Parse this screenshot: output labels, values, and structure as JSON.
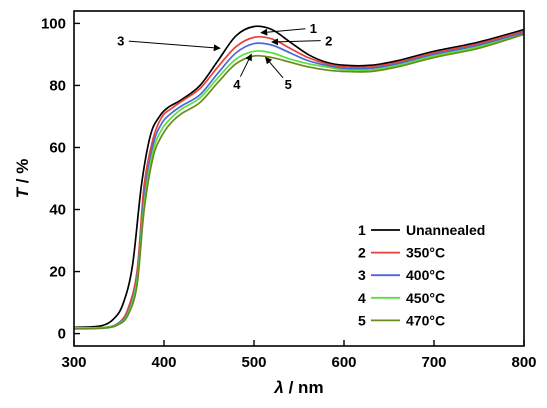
{
  "chart_data": {
    "type": "line",
    "xlabel_symbol": "λ",
    "xlabel_unit": " / nm",
    "ylabel_symbol": "T",
    "ylabel_unit": " / %",
    "xlim": [
      300,
      800
    ],
    "ylim": [
      -4,
      104
    ],
    "xticks": [
      300,
      400,
      500,
      600,
      700,
      800
    ],
    "yticks": [
      0,
      20,
      40,
      60,
      80,
      100
    ],
    "grid": false,
    "legend_position": "bottom-right",
    "series": [
      {
        "index": "1",
        "name": "Unannealed",
        "color": "#000000",
        "x": [
          300,
          330,
          345,
          355,
          365,
          375,
          385,
          395,
          405,
          420,
          440,
          460,
          480,
          500,
          520,
          540,
          560,
          580,
          600,
          630,
          660,
          700,
          750,
          800
        ],
        "y": [
          2,
          2.5,
          5,
          10,
          22,
          48,
          64,
          70,
          73,
          75.5,
          80,
          88,
          96,
          99,
          98,
          94,
          90,
          87.5,
          86.5,
          86.5,
          88,
          91,
          94,
          98
        ]
      },
      {
        "index": "2",
        "name": "350°C",
        "color": "#e8403a",
        "x": [
          300,
          335,
          350,
          360,
          370,
          378,
          388,
          398,
          408,
          420,
          440,
          460,
          480,
          500,
          520,
          540,
          560,
          580,
          600,
          630,
          660,
          700,
          750,
          800
        ],
        "y": [
          1.8,
          2,
          3.5,
          8,
          20,
          48,
          63,
          70,
          72.5,
          75,
          79,
          86,
          92.5,
          95.5,
          95,
          92,
          89,
          87,
          86,
          86,
          87.5,
          90.5,
          93.5,
          97.5
        ]
      },
      {
        "index": "3",
        "name": "400°C",
        "color": "#4a68d8",
        "x": [
          300,
          335,
          350,
          360,
          370,
          378,
          388,
          398,
          408,
          420,
          440,
          460,
          480,
          500,
          520,
          540,
          560,
          580,
          600,
          630,
          660,
          700,
          750,
          800
        ],
        "y": [
          1.8,
          2,
          3.5,
          7,
          18,
          44,
          61,
          68,
          71,
          73.5,
          77,
          84,
          90.5,
          93.5,
          93,
          90.5,
          88,
          86.5,
          85.5,
          85.5,
          87,
          90,
          93,
          97
        ]
      },
      {
        "index": "4",
        "name": "450°C",
        "color": "#58e03c",
        "x": [
          300,
          335,
          350,
          360,
          370,
          378,
          388,
          398,
          408,
          420,
          440,
          460,
          480,
          500,
          520,
          540,
          560,
          580,
          600,
          630,
          660,
          700,
          750,
          800
        ],
        "y": [
          1.8,
          2,
          3.2,
          6.5,
          17,
          42,
          59,
          66,
          69.5,
          72.5,
          76,
          82.5,
          88.5,
          91,
          90.5,
          88.5,
          87,
          86,
          85,
          85,
          86.5,
          89.5,
          92.5,
          96.5
        ]
      },
      {
        "index": "5",
        "name": "470°C",
        "color": "#6a8a1c",
        "x": [
          300,
          335,
          350,
          360,
          370,
          378,
          388,
          398,
          408,
          420,
          440,
          460,
          480,
          500,
          520,
          540,
          560,
          580,
          600,
          630,
          660,
          700,
          750,
          800
        ],
        "y": [
          1.5,
          1.8,
          3,
          6,
          15.5,
          40,
          57,
          64,
          68,
          71,
          74.5,
          81,
          87,
          89.5,
          89,
          87.5,
          86,
          85,
          84.5,
          84.5,
          86,
          89,
          92,
          96.5
        ]
      }
    ],
    "annotations": [
      {
        "label": "1",
        "x": 566,
        "y": 98.5,
        "tx": 508,
        "ty": 97
      },
      {
        "label": "2",
        "x": 583,
        "y": 94.5,
        "tx": 520,
        "ty": 94
      },
      {
        "label": "3",
        "x": 352,
        "y": 94.5,
        "tx": 462,
        "ty": 92
      },
      {
        "label": "4",
        "x": 481,
        "y": 80.5,
        "tx": 497,
        "ty": 90
      },
      {
        "label": "5",
        "x": 538,
        "y": 80.5,
        "tx": 513,
        "ty": 89
      }
    ]
  }
}
